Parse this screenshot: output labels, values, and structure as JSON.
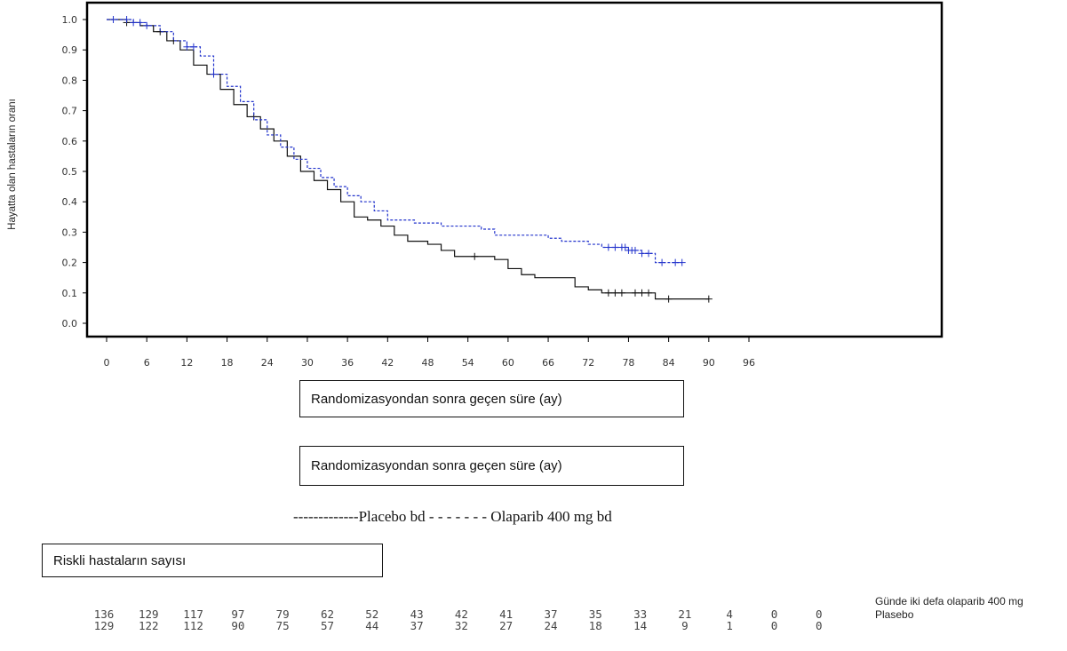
{
  "chart_data": {
    "type": "line",
    "ylabel": "Hayatta olan hastaların oranı",
    "xlabel": "Randomizasyondan sonra geçen süre (ay)",
    "xlabel_repeat": "Randomizasyondan sonra geçen süre (ay)",
    "xlim": [
      0,
      96
    ],
    "ylim": [
      0.0,
      1.0
    ],
    "x_ticks": [
      "0",
      "6",
      "12",
      "18",
      "24",
      "30",
      "36",
      "42",
      "48",
      "54",
      "60",
      "66",
      "72",
      "78",
      "84",
      "90",
      "96"
    ],
    "y_ticks": [
      "0.0",
      "0.1",
      "0.2",
      "0.3",
      "0.4",
      "0.5",
      "0.6",
      "0.7",
      "0.8",
      "0.9",
      "1.0"
    ],
    "legend_text": "-------------Placebo bd - - - - - - - Olaparib 400 mg bd",
    "series": [
      {
        "name": "Placebo bd",
        "color": "#111111",
        "style": "solid-step",
        "points": [
          [
            0,
            1.0
          ],
          [
            3,
            0.99
          ],
          [
            5,
            0.98
          ],
          [
            7,
            0.96
          ],
          [
            9,
            0.93
          ],
          [
            11,
            0.9
          ],
          [
            13,
            0.85
          ],
          [
            15,
            0.82
          ],
          [
            17,
            0.77
          ],
          [
            19,
            0.72
          ],
          [
            21,
            0.68
          ],
          [
            23,
            0.64
          ],
          [
            25,
            0.6
          ],
          [
            27,
            0.55
          ],
          [
            29,
            0.5
          ],
          [
            31,
            0.47
          ],
          [
            33,
            0.44
          ],
          [
            35,
            0.4
          ],
          [
            37,
            0.35
          ],
          [
            39,
            0.34
          ],
          [
            41,
            0.32
          ],
          [
            43,
            0.29
          ],
          [
            45,
            0.27
          ],
          [
            48,
            0.26
          ],
          [
            50,
            0.24
          ],
          [
            52,
            0.22
          ],
          [
            56,
            0.22
          ],
          [
            58,
            0.21
          ],
          [
            60,
            0.18
          ],
          [
            62,
            0.16
          ],
          [
            64,
            0.15
          ],
          [
            68,
            0.15
          ],
          [
            70,
            0.12
          ],
          [
            72,
            0.11
          ],
          [
            74,
            0.1
          ],
          [
            80,
            0.1
          ],
          [
            82,
            0.08
          ],
          [
            84,
            0.08
          ],
          [
            90,
            0.08
          ]
        ],
        "censored": [
          3,
          8,
          10,
          22,
          55,
          75,
          76,
          77,
          79,
          80,
          81,
          84,
          90
        ]
      },
      {
        "name": "Olaparib 400 mg bd",
        "color": "#2233cc",
        "style": "dashed-step",
        "points": [
          [
            0,
            1.0
          ],
          [
            4,
            0.99
          ],
          [
            6,
            0.98
          ],
          [
            8,
            0.96
          ],
          [
            10,
            0.93
          ],
          [
            12,
            0.91
          ],
          [
            14,
            0.88
          ],
          [
            16,
            0.82
          ],
          [
            18,
            0.78
          ],
          [
            20,
            0.73
          ],
          [
            22,
            0.67
          ],
          [
            24,
            0.62
          ],
          [
            26,
            0.58
          ],
          [
            28,
            0.54
          ],
          [
            30,
            0.51
          ],
          [
            32,
            0.48
          ],
          [
            34,
            0.45
          ],
          [
            36,
            0.42
          ],
          [
            38,
            0.4
          ],
          [
            40,
            0.37
          ],
          [
            42,
            0.34
          ],
          [
            46,
            0.33
          ],
          [
            50,
            0.32
          ],
          [
            56,
            0.31
          ],
          [
            58,
            0.29
          ],
          [
            62,
            0.29
          ],
          [
            66,
            0.28
          ],
          [
            68,
            0.27
          ],
          [
            72,
            0.26
          ],
          [
            74,
            0.25
          ],
          [
            78,
            0.24
          ],
          [
            80,
            0.23
          ],
          [
            82,
            0.2
          ],
          [
            86,
            0.2
          ]
        ],
        "censored": [
          1,
          3,
          4,
          5,
          6,
          12,
          13,
          16,
          75,
          76,
          77,
          77.5,
          78,
          78.5,
          79,
          80,
          81,
          83,
          85,
          86
        ]
      }
    ]
  },
  "risk_table": {
    "title": "Riskli hastaların sayısı",
    "rows": [
      {
        "label": "Günde iki defa olaparib 400 mg",
        "values": [
          "136",
          "129",
          "117",
          "97",
          "79",
          "62",
          "52",
          "43",
          "42",
          "41",
          "37",
          "35",
          "33",
          "21",
          "4",
          "0",
          "0"
        ]
      },
      {
        "label": "Plasebo",
        "values": [
          "129",
          "122",
          "112",
          "90",
          "75",
          "57",
          "44",
          "37",
          "32",
          "27",
          "24",
          "18",
          "14",
          "9",
          "1",
          "0",
          "0"
        ]
      }
    ]
  }
}
